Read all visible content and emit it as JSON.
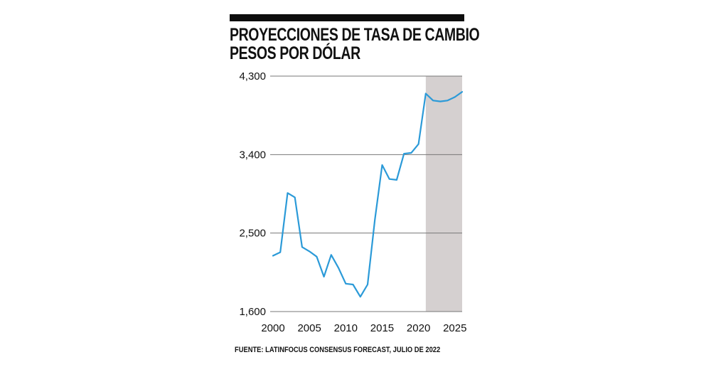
{
  "header": {
    "title_line1": "PROYECCIONES DE TASA DE CAMBIO",
    "title_line2": "PESOS POR DÓLAR"
  },
  "footer": {
    "source": "FUENTE: LATINFOCUS CONSENSUS FORECAST, JULIO DE 2022"
  },
  "colors": {
    "line": "#2b9ad8",
    "forecast_band": "#d5d0d0",
    "grid": "#777777"
  },
  "chart_data": {
    "type": "line",
    "title": "PROYECCIONES DE TASA DE CAMBIO PESOS POR DÓLAR",
    "xlabel": "",
    "ylabel": "",
    "xlim": [
      2000,
      2026
    ],
    "ylim": [
      1600,
      4300
    ],
    "x_ticks": [
      2000,
      2005,
      2010,
      2015,
      2020,
      2025
    ],
    "x_tick_labels": [
      "2000",
      "2005",
      "2010",
      "2015",
      "2020",
      "2025"
    ],
    "y_ticks": [
      1600,
      2500,
      3400,
      4300
    ],
    "y_tick_labels": [
      "1,600",
      "2,500",
      "3,400",
      "4,300"
    ],
    "forecast_range": [
      2021,
      2026
    ],
    "series": [
      {
        "name": "Pesos por dólar",
        "x": [
          2000,
          2001,
          2002,
          2003,
          2004,
          2005,
          2006,
          2007,
          2008,
          2009,
          2010,
          2011,
          2012,
          2013,
          2014,
          2015,
          2016,
          2017,
          2018,
          2019,
          2020,
          2021,
          2022,
          2023,
          2024,
          2025,
          2026
        ],
        "values": [
          2240,
          2280,
          2960,
          2910,
          2340,
          2290,
          2230,
          2000,
          2250,
          2100,
          1920,
          1910,
          1770,
          1910,
          2650,
          3280,
          3120,
          3110,
          3410,
          3420,
          3520,
          4100,
          4020,
          4010,
          4020,
          4060,
          4120
        ]
      }
    ]
  }
}
